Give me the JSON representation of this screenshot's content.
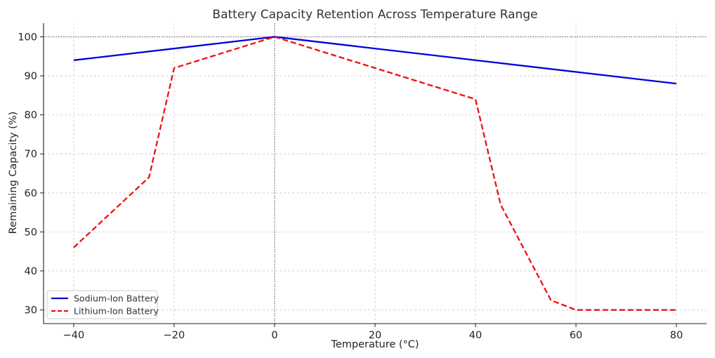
{
  "chart_data": {
    "type": "line",
    "title": "Battery Capacity Retention Across Temperature Range",
    "xlabel": "Temperature (°C)",
    "ylabel": "Remaining Capacity (%)",
    "xlim": [
      -46,
      86
    ],
    "ylim": [
      26.5,
      103.5
    ],
    "xticks": [
      -40,
      -20,
      0,
      20,
      40,
      60,
      80
    ],
    "xtick_labels": [
      "−40",
      "−20",
      "0",
      "20",
      "40",
      "60",
      "80"
    ],
    "yticks": [
      30,
      40,
      50,
      60,
      70,
      80,
      90,
      100
    ],
    "ytick_labels": [
      "30",
      "40",
      "50",
      "60",
      "70",
      "80",
      "90",
      "100"
    ],
    "grid": true,
    "reference_lines": {
      "horizontal_y": 100,
      "vertical_x": 0,
      "color": "#808080",
      "style": "dotted"
    },
    "legend_position": "bottom-left",
    "series": [
      {
        "name": "Sodium-Ion Battery",
        "color": "#0000dd",
        "style": "solid",
        "x": [
          -40,
          0,
          80
        ],
        "y": [
          94,
          100,
          88
        ]
      },
      {
        "name": "Lithium-Ion Battery",
        "color": "#ee1111",
        "style": "dashed",
        "x": [
          -40,
          -25,
          -20,
          0,
          40,
          45,
          55,
          60,
          80
        ],
        "y": [
          46,
          64,
          92,
          100,
          84,
          57,
          32.5,
          30,
          30
        ]
      }
    ]
  }
}
